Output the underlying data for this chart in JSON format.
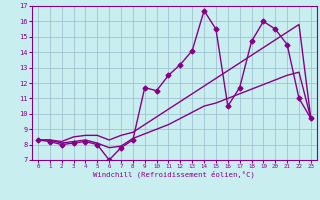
{
  "xlabel": "Windchill (Refroidissement éolien,°C)",
  "xlim": [
    -0.5,
    23.5
  ],
  "ylim": [
    7,
    17
  ],
  "yticks": [
    7,
    8,
    9,
    10,
    11,
    12,
    13,
    14,
    15,
    16,
    17
  ],
  "xticks": [
    0,
    1,
    2,
    3,
    4,
    5,
    6,
    7,
    8,
    9,
    10,
    11,
    12,
    13,
    14,
    15,
    16,
    17,
    18,
    19,
    20,
    21,
    22,
    23
  ],
  "background_color": "#c8eef0",
  "line_color": "#880088",
  "grid_color": "#99bbcc",
  "series": {
    "line_volatile": {
      "x": [
        0,
        1,
        2,
        3,
        4,
        5,
        6,
        7,
        8,
        9,
        10,
        11,
        12,
        13,
        14,
        15,
        16,
        17,
        18,
        19,
        20,
        21,
        22,
        23
      ],
      "y": [
        8.3,
        8.2,
        8.0,
        8.1,
        8.2,
        8.0,
        7.0,
        7.8,
        8.3,
        11.7,
        11.5,
        12.5,
        13.2,
        14.1,
        16.7,
        15.5,
        10.5,
        11.7,
        14.7,
        16.0,
        15.5,
        14.5,
        11.0,
        9.7
      ],
      "marker": "D",
      "markersize": 2.5,
      "linewidth": 1.0
    },
    "line_lower": {
      "x": [
        0,
        1,
        2,
        3,
        4,
        5,
        6,
        7,
        8,
        9,
        10,
        11,
        12,
        13,
        14,
        15,
        16,
        17,
        18,
        19,
        20,
        21,
        22,
        23
      ],
      "y": [
        8.3,
        8.3,
        8.1,
        8.2,
        8.3,
        8.1,
        7.8,
        7.9,
        8.4,
        8.7,
        9.0,
        9.3,
        9.7,
        10.1,
        10.5,
        10.7,
        11.0,
        11.3,
        11.6,
        11.9,
        12.2,
        12.5,
        12.7,
        9.7
      ],
      "marker": null,
      "linewidth": 1.0
    },
    "line_upper": {
      "x": [
        0,
        1,
        2,
        3,
        4,
        5,
        6,
        7,
        8,
        9,
        10,
        11,
        12,
        13,
        14,
        15,
        16,
        17,
        18,
        19,
        20,
        21,
        22,
        23
      ],
      "y": [
        8.3,
        8.3,
        8.2,
        8.5,
        8.6,
        8.6,
        8.3,
        8.6,
        8.8,
        9.3,
        9.8,
        10.3,
        10.8,
        11.3,
        11.8,
        12.3,
        12.8,
        13.3,
        13.8,
        14.3,
        14.8,
        15.3,
        15.8,
        9.7
      ],
      "marker": null,
      "linewidth": 1.0
    }
  }
}
